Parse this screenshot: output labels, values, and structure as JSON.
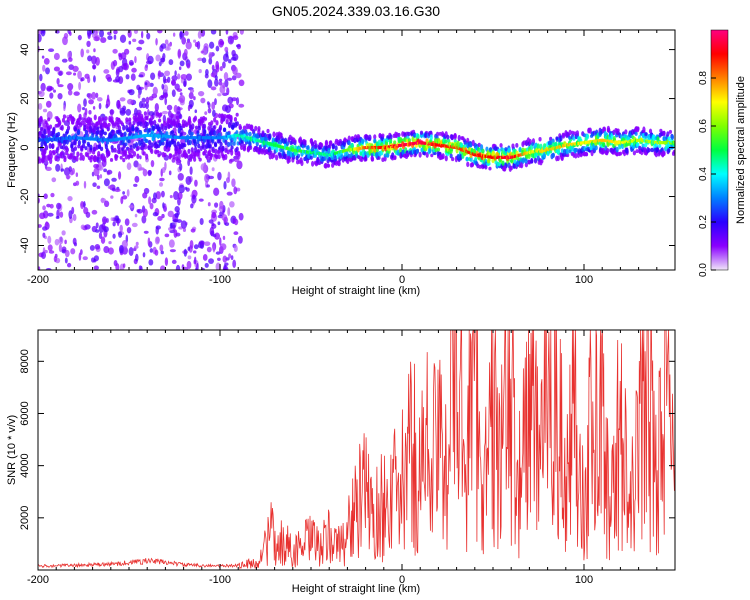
{
  "figure": {
    "title": "GN05.2024.339.03.16.G30"
  },
  "chart_data": [
    {
      "type": "heatmap",
      "title": "GN05.2024.339.03.16.G30",
      "xlabel": "Height of straight line (km)",
      "ylabel": "Frequency (Hz)",
      "xlim": [
        -200,
        150
      ],
      "ylim": [
        -50,
        48
      ],
      "x_ticks": [
        -200,
        -100,
        0,
        100
      ],
      "y_ticks": [
        -40,
        -20,
        0,
        20,
        40
      ],
      "colorbar": {
        "label": "Normalized spectral amplitude",
        "range": [
          0,
          1
        ],
        "ticks": [
          0.0,
          0.2,
          0.4,
          0.6,
          0.8
        ],
        "colors": [
          "#f0e6f8",
          "#8a00ff",
          "#2a00ff",
          "#0080ff",
          "#00ffff",
          "#00ff40",
          "#80ff00",
          "#ffff00",
          "#ff8000",
          "#ff0000",
          "#ff0080"
        ]
      },
      "ridge": {
        "x": [
          -200,
          -180,
          -160,
          -140,
          -120,
          -100,
          -90,
          -80,
          -70,
          -60,
          -50,
          -40,
          -30,
          -20,
          -10,
          0,
          10,
          20,
          30,
          40,
          50,
          60,
          70,
          80,
          90,
          100,
          110,
          120,
          130,
          140,
          150
        ],
        "frequency": [
          3,
          4,
          3,
          5,
          4,
          4,
          5,
          3,
          1,
          -1,
          -2,
          -3,
          -1,
          0,
          0,
          1,
          2,
          1,
          0,
          -3,
          -4,
          -4,
          -2,
          -1,
          1,
          2,
          3,
          2,
          3,
          2,
          2
        ],
        "amplitude": [
          0.25,
          0.3,
          0.3,
          0.35,
          0.3,
          0.3,
          0.45,
          0.45,
          0.5,
          0.55,
          0.5,
          0.45,
          0.6,
          0.85,
          0.9,
          0.95,
          0.95,
          0.9,
          0.85,
          0.9,
          0.9,
          0.95,
          0.7,
          0.75,
          0.75,
          0.7,
          0.75,
          0.7,
          0.65,
          0.65,
          0.6
        ]
      }
    },
    {
      "type": "line",
      "xlabel": "Height of straight line (km)",
      "ylabel": "SNR (10 * v/v)",
      "xlim": [
        -200,
        150
      ],
      "ylim": [
        0,
        9200
      ],
      "x_ticks": [
        -200,
        -100,
        0,
        100
      ],
      "y_ticks": [
        2000,
        4000,
        6000,
        8000
      ],
      "series": [
        {
          "color": "#e8312f",
          "x": [
            -200,
            -180,
            -160,
            -140,
            -130,
            -120,
            -100,
            -90,
            -80,
            -75,
            -72,
            -70,
            -65,
            -60,
            -55,
            -50,
            -45,
            -40,
            -35,
            -30,
            -25,
            -20,
            -15,
            -10,
            -5,
            0,
            5,
            10,
            15,
            20,
            25,
            30,
            35,
            40,
            45,
            50,
            55,
            60,
            65,
            70,
            75,
            78,
            80,
            85,
            90,
            95,
            100,
            105,
            110,
            115,
            120,
            125,
            130,
            135,
            140,
            145,
            150
          ],
          "y": [
            150,
            180,
            220,
            350,
            300,
            200,
            150,
            180,
            250,
            900,
            1600,
            800,
            1100,
            700,
            900,
            1200,
            800,
            1300,
            900,
            1500,
            2400,
            2900,
            2000,
            2600,
            2800,
            3200,
            4500,
            3800,
            5000,
            4200,
            5600,
            8800,
            4200,
            8600,
            3000,
            5800,
            4500,
            7000,
            3000,
            6800,
            4000,
            9200,
            4500,
            7500,
            2500,
            7800,
            2000,
            6500,
            5500,
            2200,
            6000,
            1800,
            4800,
            7500,
            3000,
            8400,
            3500
          ]
        }
      ]
    }
  ]
}
